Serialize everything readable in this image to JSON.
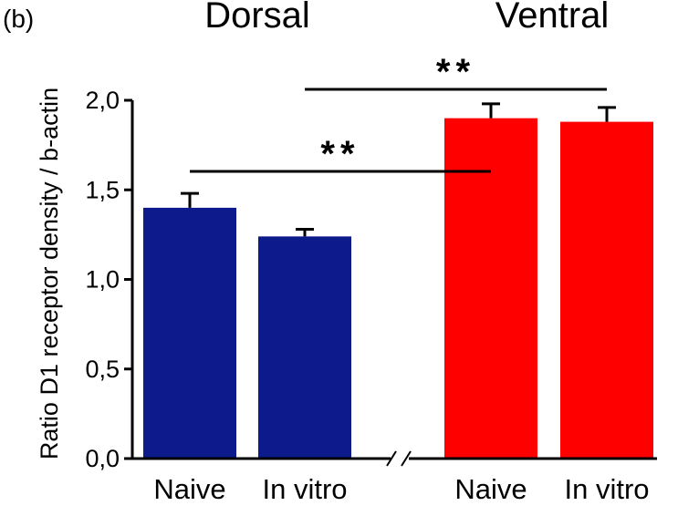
{
  "panel_label": "(b)",
  "chart_data": {
    "type": "bar",
    "title": "",
    "ylabel": "Ratio D1 receptor density / b-actin",
    "xlabel": "",
    "ylim": [
      0,
      2.0
    ],
    "yticks": [
      "0,0",
      "0,5",
      "1,0",
      "1,5",
      "2,0"
    ],
    "groups": [
      "Dorsal",
      "Ventral"
    ],
    "categories": [
      "Naive",
      "In vitro",
      "Naive",
      "In vitro"
    ],
    "bar_groups": [
      "Dorsal",
      "Dorsal",
      "Ventral",
      "Ventral"
    ],
    "values": [
      1.4,
      1.24,
      1.9,
      1.88
    ],
    "errors": [
      0.08,
      0.04,
      0.08,
      0.08
    ],
    "colors": [
      "#0d1a8c",
      "#0d1a8c",
      "#ff0000",
      "#ff0000"
    ],
    "axis_break": "//",
    "significance": [
      {
        "label": "**",
        "from_bar": 0,
        "to_bar": 2
      },
      {
        "label": "**",
        "from_bar": 1,
        "to_bar": 3
      }
    ]
  }
}
